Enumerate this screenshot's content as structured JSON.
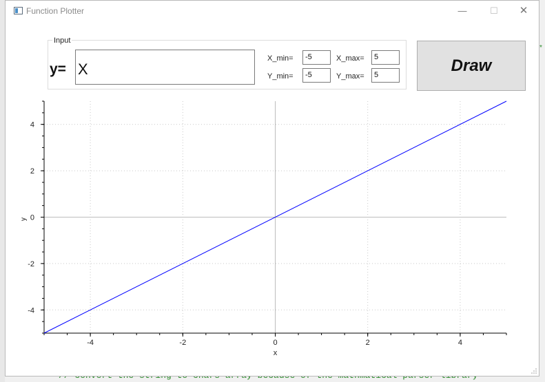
{
  "window": {
    "title": "Function Plotter",
    "icon": "app-window-icon"
  },
  "background": {
    "code_comment": "// convert the string to chars array because of the mathmatical parser library"
  },
  "input_group": {
    "label": "Input",
    "y_label": "y=",
    "function": "X",
    "x_min_label": "X_min=",
    "x_min": "-5",
    "x_max_label": "X_max=",
    "x_max": "5",
    "y_min_label": "Y_min=",
    "y_min": "-5",
    "y_max_label": "Y_max=",
    "y_max": "5"
  },
  "draw_button": {
    "label": "Draw"
  },
  "chart_data": {
    "type": "line",
    "x": [
      -5,
      5
    ],
    "series": [
      {
        "values": [
          -5,
          5
        ],
        "color": "#0000ff"
      }
    ],
    "xlabel": "x",
    "ylabel": "y",
    "xlim": [
      -5,
      5
    ],
    "ylim": [
      -5,
      5
    ],
    "xticks": [
      -4,
      -2,
      0,
      2,
      4
    ],
    "yticks": [
      -4,
      -2,
      0,
      2,
      4
    ],
    "grid": true
  },
  "colors": {
    "line": "#0000ff",
    "grid": "#c8c8c8",
    "axis": "#000000"
  }
}
